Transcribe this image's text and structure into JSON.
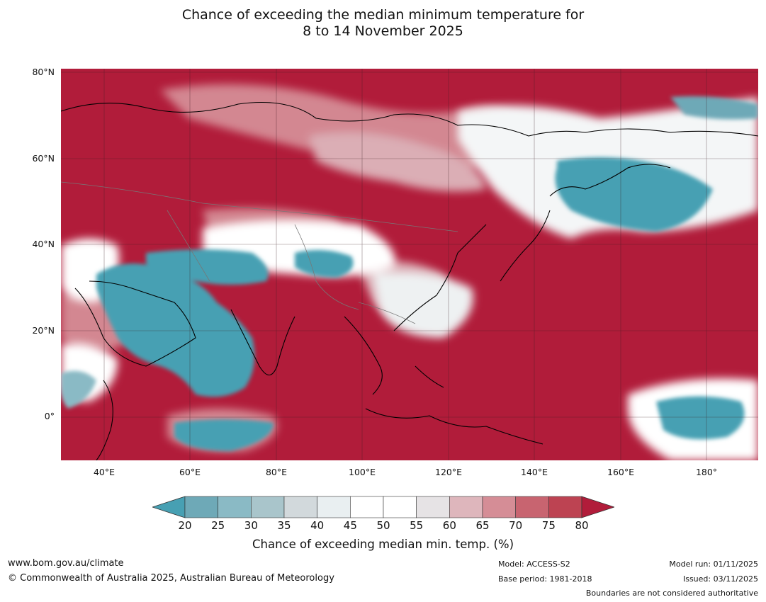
{
  "title": {
    "line1": "Chance of exceeding the median minimum temperature for",
    "line2": "8 to 14 November 2025"
  },
  "map": {
    "lat_labels": [
      "80°N",
      "60°N",
      "40°N",
      "20°N",
      "0°"
    ],
    "lon_labels": [
      "40°E",
      "60°E",
      "80°E",
      "100°E",
      "120°E",
      "140°E",
      "160°E",
      "180°"
    ],
    "extent": {
      "lon_min": 30,
      "lon_max": 192,
      "lat_min": -10,
      "lat_max": 81
    }
  },
  "colorbar": {
    "ticks": [
      "20",
      "25",
      "30",
      "35",
      "40",
      "45",
      "50",
      "55",
      "60",
      "65",
      "70",
      "75",
      "80"
    ],
    "colors": [
      "#47a0b3",
      "#6ea9b7",
      "#8abac5",
      "#a9c5cb",
      "#d2d9dc",
      "#e9eff1",
      "#ffffff",
      "#ffffff",
      "#e6e3e5",
      "#deb6bc",
      "#d58d96",
      "#c86470",
      "#bd4352",
      "#b11c3a"
    ],
    "label": "Chance of exceeding median min. temp. (%)"
  },
  "footer": {
    "website": "www.bom.gov.au/climate",
    "copyright": "© Commonwealth of Australia 2025, Australian Bureau of Meteorology",
    "model": "Model: ACCESS-S2",
    "base_period": "Base period: 1981-2018",
    "model_run": "Model run: 01/11/2025",
    "issued": "Issued: 03/11/2025",
    "disclaimer": "Boundaries are not considered authoritative"
  }
}
